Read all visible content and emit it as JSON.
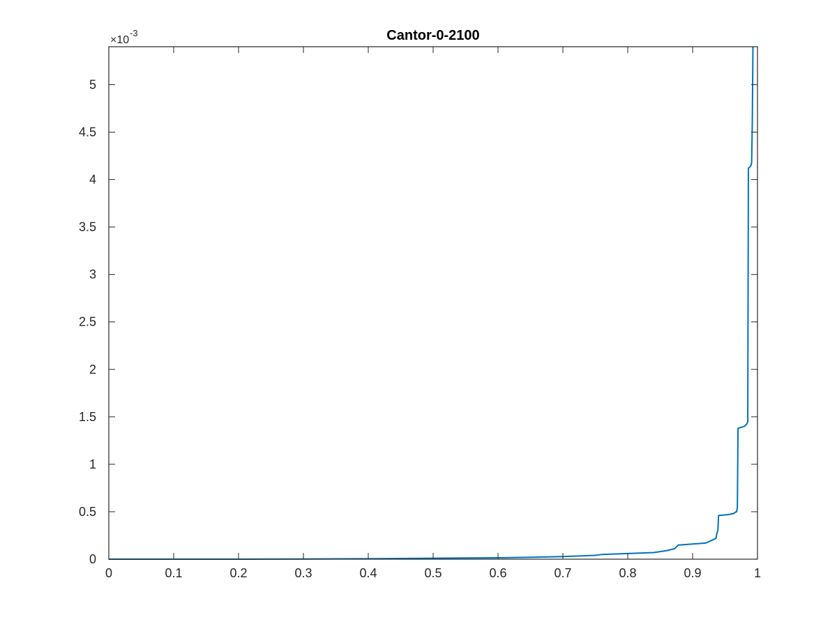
{
  "chart_data": {
    "type": "line",
    "title": "Cantor-0-2100",
    "xlabel": "",
    "ylabel": "",
    "xlim": [
      0,
      1
    ],
    "ylim": [
      0,
      0.0054
    ],
    "y_exponent_label": "×10",
    "y_exponent_power": "-3",
    "x_ticks": [
      0,
      0.1,
      0.2,
      0.3,
      0.4,
      0.5,
      0.6,
      0.7,
      0.8,
      0.9,
      1
    ],
    "x_tick_labels": [
      "0",
      "0.1",
      "0.2",
      "0.3",
      "0.4",
      "0.5",
      "0.6",
      "0.7",
      "0.8",
      "0.9",
      "1"
    ],
    "y_ticks": [
      0,
      0.0005,
      0.001,
      0.0015,
      0.002,
      0.0025,
      0.003,
      0.0035,
      0.004,
      0.0045,
      0.005
    ],
    "y_tick_labels": [
      "0",
      "0.5",
      "1",
      "1.5",
      "2",
      "2.5",
      "3",
      "3.5",
      "4",
      "4.5",
      "5"
    ],
    "grid": false,
    "series": [
      {
        "color": "#0072BD",
        "x": [
          0,
          0.1,
          0.2,
          0.3,
          0.4,
          0.5,
          0.6,
          0.65,
          0.7,
          0.75,
          0.76,
          0.8,
          0.84,
          0.86,
          0.872,
          0.878,
          0.88,
          0.9,
          0.92,
          0.93,
          0.936,
          0.937,
          0.939,
          0.94,
          0.955,
          0.963,
          0.967,
          0.968,
          0.969,
          0.97,
          0.975,
          0.98,
          0.983,
          0.984,
          0.985,
          0.986,
          0.988,
          0.99,
          0.991,
          0.992,
          0.993
        ],
        "y": [
          0,
          0,
          0,
          2e-06,
          5e-06,
          1e-05,
          1.5e-05,
          2e-05,
          2.8e-05,
          4e-05,
          5e-05,
          6e-05,
          7e-05,
          9e-05,
          0.00011,
          0.00015,
          0.00015,
          0.00016,
          0.00017,
          0.0002,
          0.00022,
          0.00026,
          0.00031,
          0.00046,
          0.00047,
          0.00048,
          0.0005,
          0.0005,
          0.00055,
          0.00138,
          0.00139,
          0.0014,
          0.00142,
          0.00143,
          0.00145,
          0.00412,
          0.00413,
          0.00415,
          0.00418,
          0.0046,
          0.0054
        ]
      }
    ]
  }
}
